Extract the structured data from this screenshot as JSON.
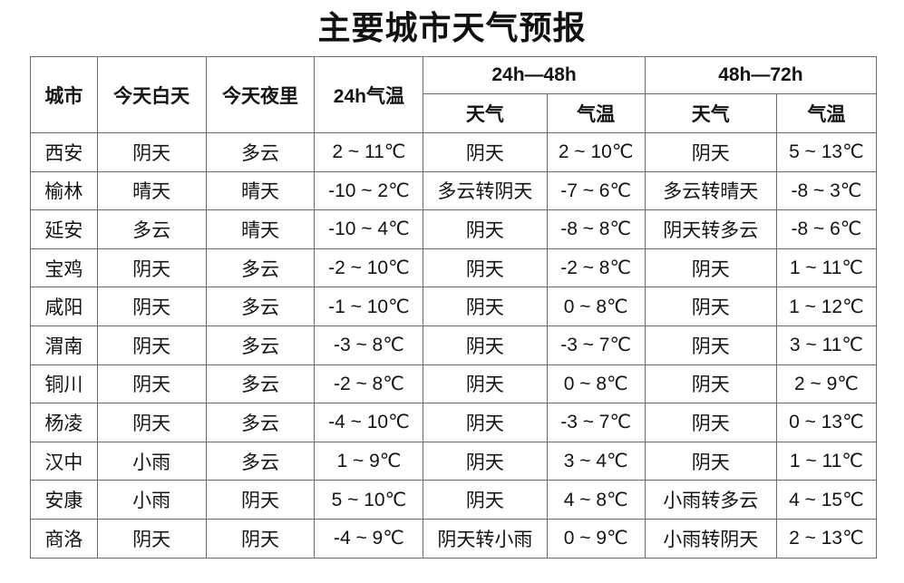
{
  "title": "主要城市天气预报",
  "colors": {
    "background": "#ffffff",
    "border": "#6b6b6b",
    "text": "#141414"
  },
  "chart_data": {
    "type": "table",
    "title": "主要城市天气预报",
    "header": {
      "static_columns": [
        "城市",
        "今天白天",
        "今天夜里",
        "24h气温"
      ],
      "group_columns": [
        {
          "label": "24h—48h",
          "children": [
            "天气",
            "气温"
          ]
        },
        {
          "label": "48h—72h",
          "children": [
            "天气",
            "气温"
          ]
        }
      ]
    },
    "rows": [
      {
        "city": "西安",
        "day": "阴天",
        "night": "多云",
        "t24": "2 ~ 11℃",
        "w48": "阴天",
        "t48": "2 ~ 10℃",
        "w72": "阴天",
        "t72": "5 ~ 13℃"
      },
      {
        "city": "榆林",
        "day": "晴天",
        "night": "晴天",
        "t24": "-10 ~ 2℃",
        "w48": "多云转阴天",
        "t48": "-7 ~ 6℃",
        "w72": "多云转晴天",
        "t72": "-8 ~ 3℃"
      },
      {
        "city": "延安",
        "day": "多云",
        "night": "晴天",
        "t24": "-10 ~ 4℃",
        "w48": "阴天",
        "t48": "-8 ~ 8℃",
        "w72": "阴天转多云",
        "t72": "-8 ~ 6℃"
      },
      {
        "city": "宝鸡",
        "day": "阴天",
        "night": "多云",
        "t24": "-2 ~ 10℃",
        "w48": "阴天",
        "t48": "-2 ~ 8℃",
        "w72": "阴天",
        "t72": "1 ~ 11℃"
      },
      {
        "city": "咸阳",
        "day": "阴天",
        "night": "多云",
        "t24": "-1 ~ 10℃",
        "w48": "阴天",
        "t48": "0 ~ 8℃",
        "w72": "阴天",
        "t72": "1 ~ 12℃"
      },
      {
        "city": "渭南",
        "day": "阴天",
        "night": "多云",
        "t24": "-3 ~ 8℃",
        "w48": "阴天",
        "t48": "-3 ~ 7℃",
        "w72": "阴天",
        "t72": "3 ~ 11℃"
      },
      {
        "city": "铜川",
        "day": "阴天",
        "night": "多云",
        "t24": "-2 ~ 8℃",
        "w48": "阴天",
        "t48": "0 ~ 8℃",
        "w72": "阴天",
        "t72": "2 ~ 9℃"
      },
      {
        "city": "杨凌",
        "day": "阴天",
        "night": "多云",
        "t24": "-4 ~ 10℃",
        "w48": "阴天",
        "t48": "-3 ~ 7℃",
        "w72": "阴天",
        "t72": "0 ~ 13℃"
      },
      {
        "city": "汉中",
        "day": "小雨",
        "night": "多云",
        "t24": "1 ~ 9℃",
        "w48": "阴天",
        "t48": "3 ~ 4℃",
        "w72": "阴天",
        "t72": "1 ~ 11℃"
      },
      {
        "city": "安康",
        "day": "小雨",
        "night": "阴天",
        "t24": "5 ~ 10℃",
        "w48": "阴天",
        "t48": "4 ~ 8℃",
        "w72": "小雨转多云",
        "t72": "4 ~ 15℃"
      },
      {
        "city": "商洛",
        "day": "阴天",
        "night": "阴天",
        "t24": "-4 ~ 9℃",
        "w48": "阴天转小雨",
        "t48": "0 ~ 9℃",
        "w72": "小雨转阴天",
        "t72": "2 ~ 13℃"
      }
    ]
  }
}
